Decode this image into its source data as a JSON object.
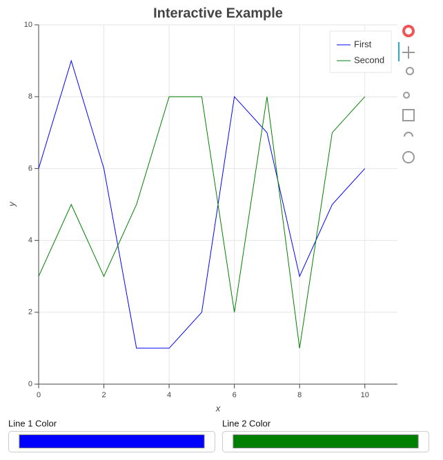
{
  "chart_data": {
    "type": "line",
    "title": "Interactive Example",
    "x_label": "x",
    "y_label": "y",
    "x": [
      0,
      1,
      2,
      3,
      4,
      5,
      6,
      7,
      8,
      9,
      10
    ],
    "series": [
      {
        "name": "First",
        "color": "#0000ff",
        "values": [
          6,
          9,
          6,
          1,
          1,
          2,
          8,
          7,
          3,
          5,
          6
        ]
      },
      {
        "name": "Second",
        "color": "#008000",
        "values": [
          3,
          5,
          3,
          5,
          8,
          8,
          2,
          8,
          1,
          7,
          8
        ]
      }
    ],
    "xlim": [
      0,
      11
    ],
    "ylim": [
      0,
      10
    ],
    "xticks": [
      0,
      2,
      4,
      6,
      8,
      10
    ],
    "yticks": [
      0,
      2,
      4,
      6,
      8,
      10
    ],
    "grid": true,
    "legend_position": "top-right"
  },
  "controls": [
    {
      "label": "Line 1 Color",
      "color": "#0000ff"
    },
    {
      "label": "Line 2 Color",
      "color": "#008000"
    }
  ]
}
